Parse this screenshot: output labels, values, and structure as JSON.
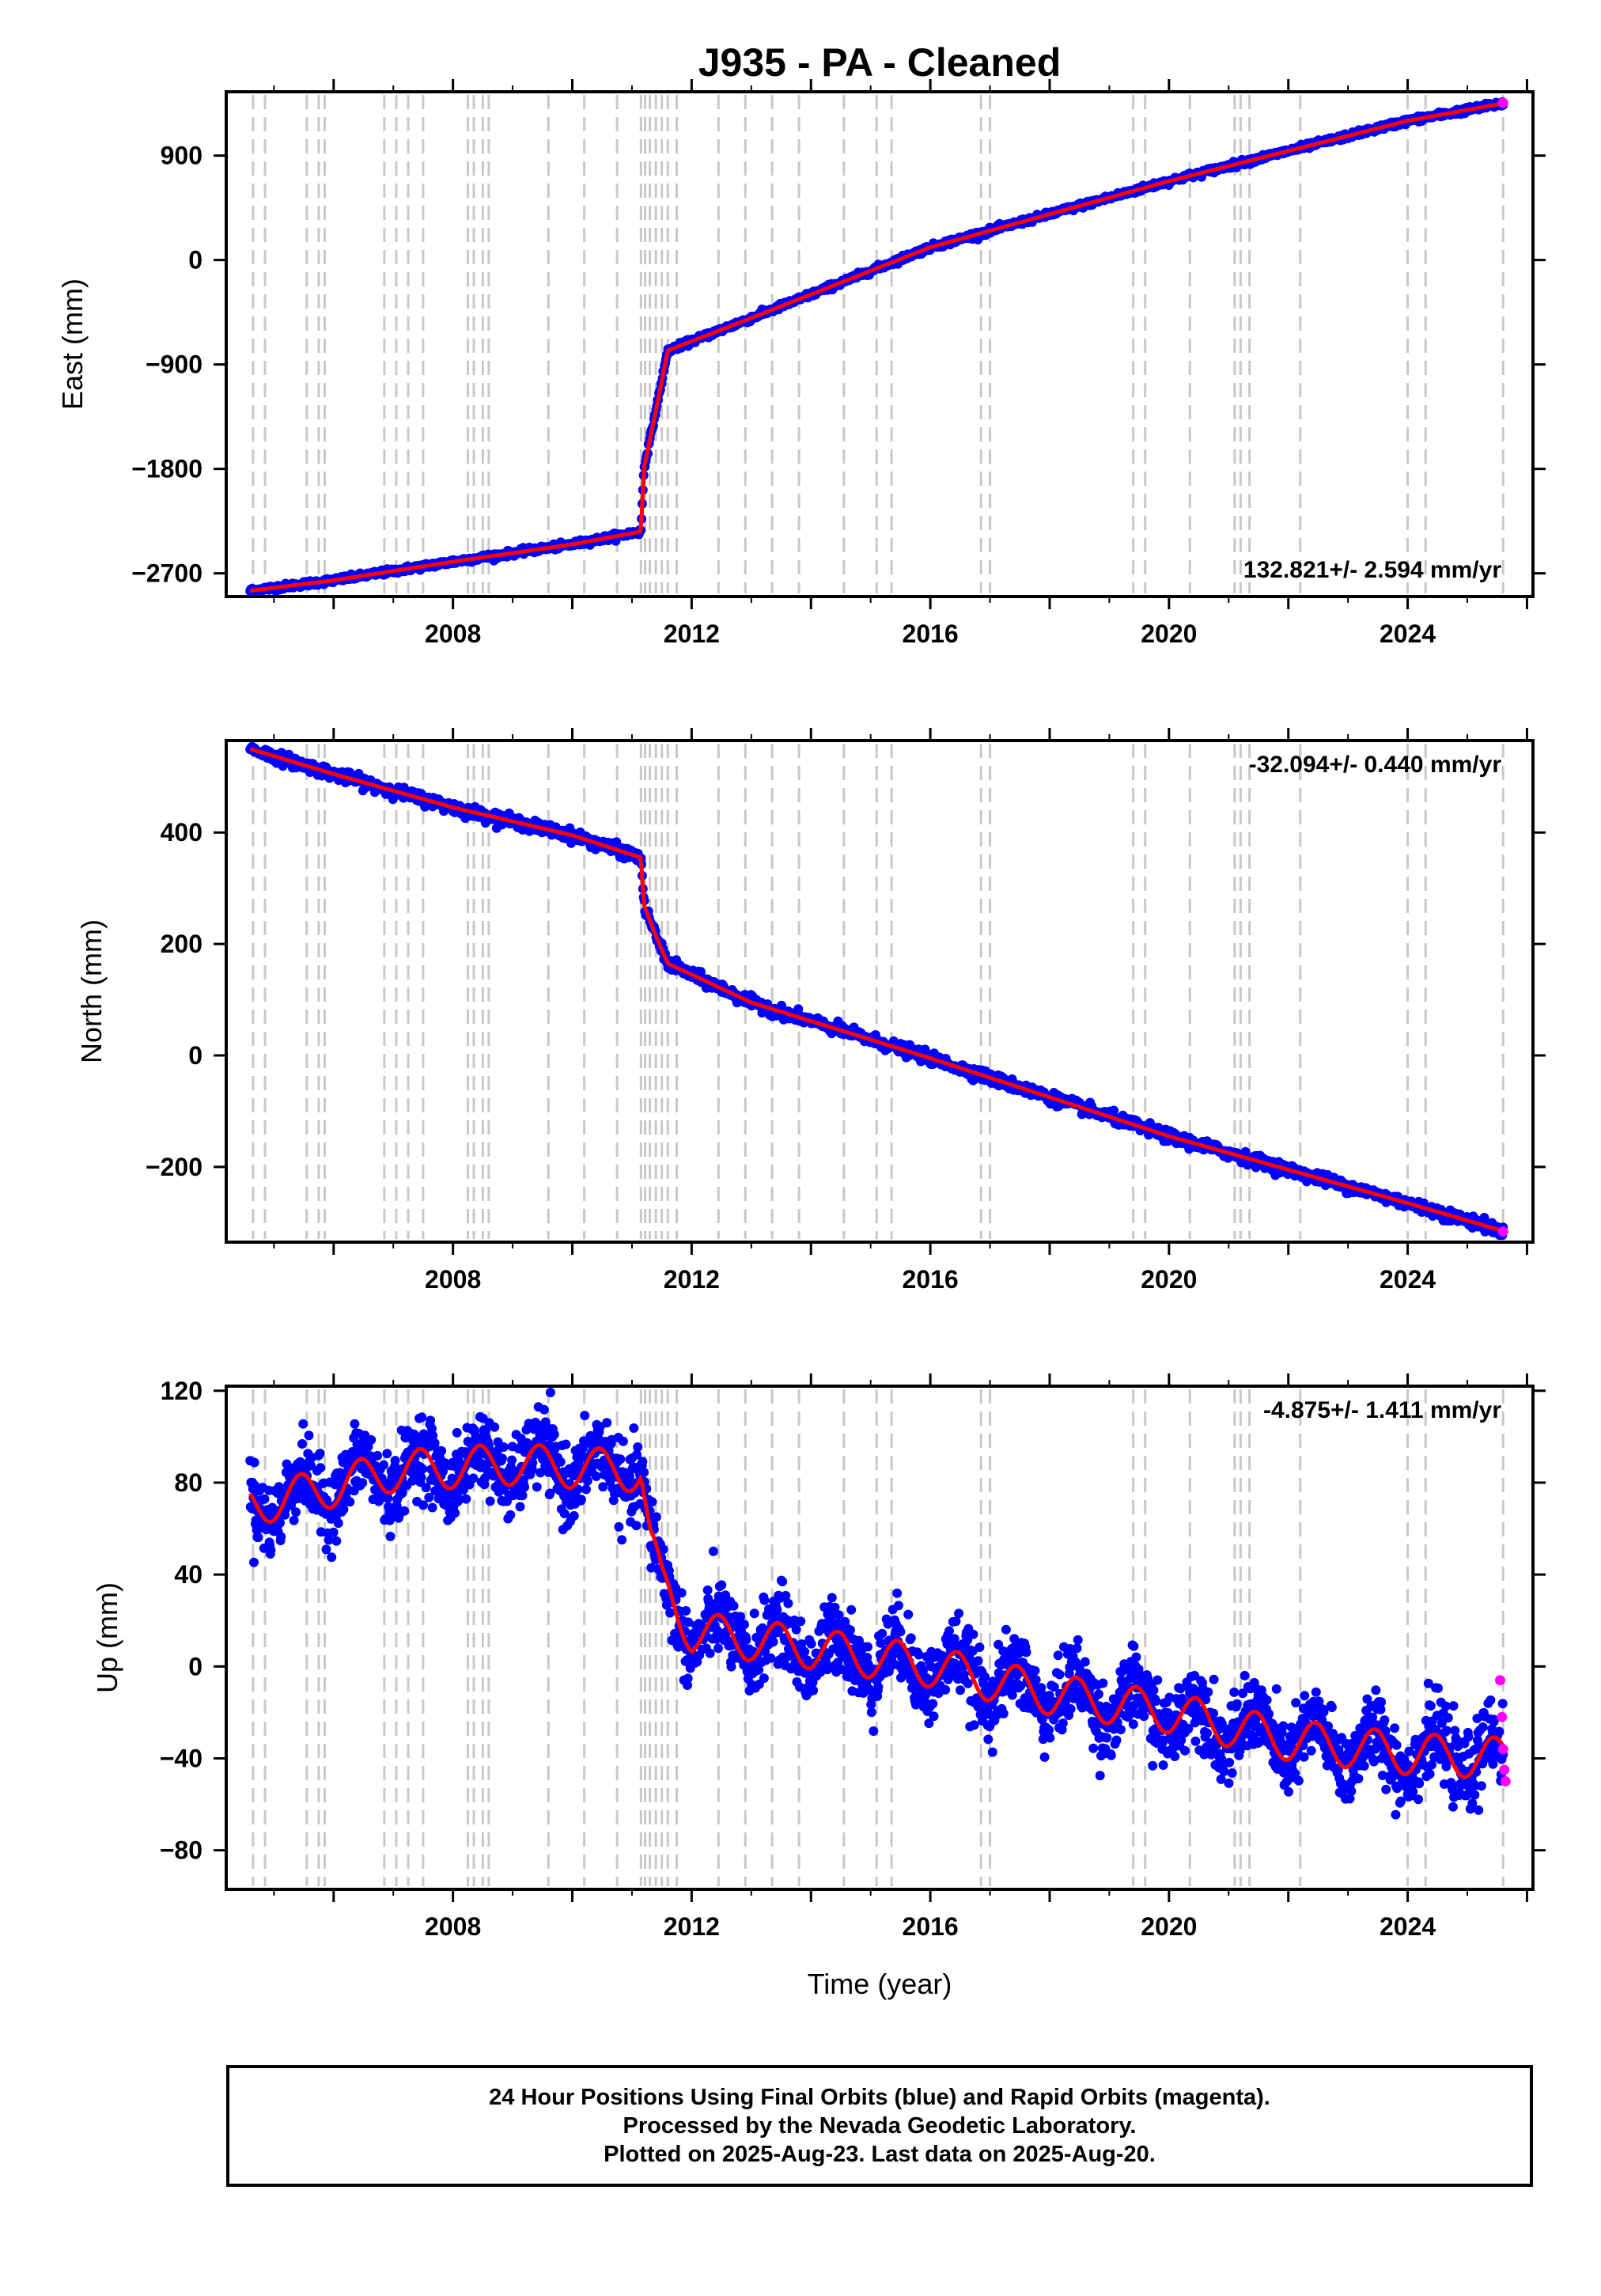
{
  "title": "J935  - PA - Cleaned",
  "xlabel": "Time (year)",
  "colors": {
    "final": "#0000ff",
    "rapid": "#ff00ff",
    "model": "#ff0000",
    "steps": "#c8c8c8"
  },
  "footer": {
    "lines": [
      "24 Hour Positions Using Final Orbits (blue) and Rapid Orbits (magenta).",
      "Processed by the Nevada Geodetic Laboratory.",
      "Plotted on 2025-Aug-23. Last data on 2025-Aug-20."
    ]
  },
  "chart_data": [
    {
      "type": "scatter",
      "ylabel": "East (mm)",
      "xlim": [
        2004.2,
        2026.1
      ],
      "ylim": [
        -2900,
        1450
      ],
      "yticks": [
        900,
        0,
        -900,
        -1800,
        -2700
      ],
      "ytick_labels": [
        "900",
        "0",
        "−900",
        "−1800",
        "−2700"
      ],
      "xticks": [
        2008,
        2012,
        2016,
        2020,
        2024
      ],
      "rate_text": "132.821+/- 2.594 mm/yr",
      "rate_position": "bottom-right",
      "series": [
        {
          "name": "Final Orbits",
          "color": "#0000ff",
          "x": [
            2004.6,
            2006.0,
            2008.0,
            2010.0,
            2011.15,
            2011.2,
            2011.4,
            2011.6,
            2013.0,
            2016.0,
            2020.0,
            2024.0,
            2025.6
          ],
          "y": [
            -2850,
            -2760,
            -2600,
            -2450,
            -2340,
            -1800,
            -1300,
            -780,
            -500,
            110,
            680,
            1200,
            1350
          ]
        },
        {
          "name": "Rapid Orbits",
          "color": "#ff00ff",
          "x": [
            2025.6
          ],
          "y": [
            1355
          ]
        }
      ]
    },
    {
      "type": "scatter",
      "ylabel": "North (mm)",
      "xlim": [
        2004.2,
        2026.1
      ],
      "ylim": [
        -335,
        565
      ],
      "yticks": [
        400,
        200,
        0,
        -200
      ],
      "ytick_labels": [
        "400",
        "200",
        "0",
        "−200"
      ],
      "xticks": [
        2008,
        2012,
        2016,
        2020,
        2024
      ],
      "rate_text": "-32.094+/- 0.440 mm/yr",
      "rate_position": "top-right",
      "series": [
        {
          "name": "Final Orbits",
          "color": "#0000ff",
          "x": [
            2004.6,
            2006.0,
            2008.0,
            2010.0,
            2011.15,
            2011.2,
            2011.4,
            2011.6,
            2013.0,
            2016.0,
            2020.0,
            2024.0,
            2025.6
          ],
          "y": [
            550,
            505,
            445,
            395,
            355,
            270,
            215,
            165,
            95,
            -5,
            -145,
            -265,
            -315
          ]
        },
        {
          "name": "Rapid Orbits",
          "color": "#ff00ff",
          "x": [
            2025.6
          ],
          "y": [
            -316
          ]
        }
      ]
    },
    {
      "type": "scatter",
      "ylabel": "Up (mm)",
      "xlim": [
        2004.2,
        2026.1
      ],
      "ylim": [
        -97,
        122
      ],
      "yticks": [
        120,
        80,
        40,
        0,
        -40,
        -80
      ],
      "ytick_labels": [
        "120",
        "80",
        "40",
        "0",
        "−40",
        "−80"
      ],
      "xticks": [
        2008,
        2012,
        2016,
        2020,
        2024
      ],
      "rate_text": "-4.875+/- 1.411 mm/yr",
      "rate_position": "top-right",
      "series": [
        {
          "name": "Final Orbits",
          "color": "#0000ff",
          "x": [
            2004.6,
            2005.5,
            2007.0,
            2009.0,
            2011.15,
            2011.3,
            2011.5,
            2012.0,
            2014.0,
            2016.0,
            2018.0,
            2020.0,
            2022.0,
            2024.0,
            2025.6
          ],
          "y": [
            70,
            75,
            85,
            88,
            85,
            55,
            35,
            15,
            8,
            0,
            -12,
            -20,
            -32,
            -38,
            -40
          ]
        },
        {
          "name": "Rapid Orbits",
          "color": "#ff00ff",
          "x": [
            2025.55,
            2025.58,
            2025.6,
            2025.62,
            2025.64
          ],
          "y": [
            -6,
            -22,
            -36,
            -45,
            -50
          ]
        }
      ]
    }
  ],
  "step_dates": [
    2004.65,
    2004.85,
    2005.55,
    2005.75,
    2005.85,
    2006.85,
    2007.05,
    2007.25,
    2007.5,
    2008.25,
    2008.35,
    2008.5,
    2008.6,
    2009.6,
    2010.2,
    2010.75,
    2011.15,
    2011.22,
    2011.3,
    2011.4,
    2011.5,
    2011.6,
    2011.75,
    2012.45,
    2012.9,
    2013.35,
    2013.8,
    2014.55,
    2015.1,
    2015.35,
    2016.85,
    2017.0,
    2019.4,
    2019.6,
    2020.35,
    2021.1,
    2021.2,
    2021.35,
    2022.2,
    2024.0,
    2024.3,
    2025.6
  ]
}
